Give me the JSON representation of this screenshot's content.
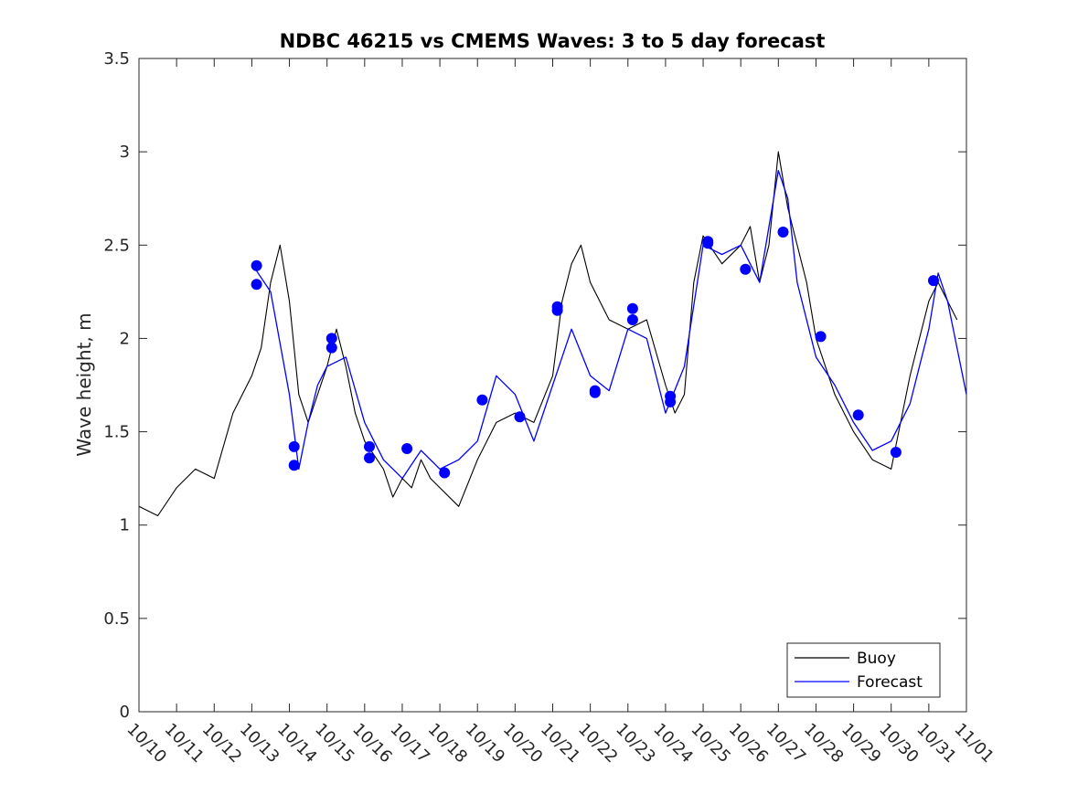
{
  "chart_data": {
    "type": "line",
    "title": "NDBC 46215 vs CMEMS Waves: 3 to 5 day forecast",
    "xlabel": "",
    "ylabel": "Wave height, m",
    "xlim": [
      "10/10",
      "11/01"
    ],
    "ylim": [
      0,
      3.5
    ],
    "x_tick_labels": [
      "10/10",
      "10/11",
      "10/12",
      "10/13",
      "10/14",
      "10/15",
      "10/16",
      "10/17",
      "10/18",
      "10/19",
      "10/20",
      "10/21",
      "10/22",
      "10/23",
      "10/24",
      "10/25",
      "10/26",
      "10/27",
      "10/28",
      "10/29",
      "10/30",
      "10/31",
      "11/01"
    ],
    "y_ticks": [
      0,
      0.5,
      1,
      1.5,
      2,
      2.5,
      3,
      3.5
    ],
    "y_tick_labels": [
      "0",
      "0.5",
      "1",
      "1.5",
      "2",
      "2.5",
      "3",
      "3.5"
    ],
    "grid": false,
    "legend": {
      "position": "bottom-right",
      "entries": [
        "Buoy",
        "Forecast"
      ]
    },
    "series": [
      {
        "name": "Buoy",
        "color": "#000000",
        "x": [
          "10/10 00:00",
          "10/10 12:00",
          "10/11 00:00",
          "10/11 12:00",
          "10/12 00:00",
          "10/12 12:00",
          "10/13 00:00",
          "10/13 06:00",
          "10/13 12:00",
          "10/13 18:00",
          "10/14 00:00",
          "10/14 06:00",
          "10/14 12:00",
          "10/14 18:00",
          "10/15 00:00",
          "10/15 06:00",
          "10/15 12:00",
          "10/15 18:00",
          "10/16 00:00",
          "10/16 12:00",
          "10/16 18:00",
          "10/17 00:00",
          "10/17 06:00",
          "10/17 12:00",
          "10/17 18:00",
          "10/18 00:00",
          "10/18 12:00",
          "10/19 00:00",
          "10/19 12:00",
          "10/20 00:00",
          "10/20 12:00",
          "10/21 00:00",
          "10/21 06:00",
          "10/21 12:00",
          "10/21 18:00",
          "10/22 00:00",
          "10/22 12:00",
          "10/23 00:00",
          "10/23 12:00",
          "10/24 00:00",
          "10/24 06:00",
          "10/24 12:00",
          "10/24 18:00",
          "10/25 00:00",
          "10/25 12:00",
          "10/26 00:00",
          "10/26 06:00",
          "10/26 12:00",
          "10/26 18:00",
          "10/27 00:00",
          "10/27 06:00",
          "10/27 12:00",
          "10/27 18:00",
          "10/28 00:00",
          "10/28 12:00",
          "10/29 00:00",
          "10/29 12:00",
          "10/30 00:00",
          "10/30 12:00",
          "10/31 00:00",
          "10/31 06:00",
          "10/31 12:00",
          "10/31 18:00"
        ],
        "values": [
          1.1,
          1.05,
          1.2,
          1.3,
          1.25,
          1.6,
          1.8,
          1.95,
          2.3,
          2.5,
          2.2,
          1.7,
          1.55,
          1.7,
          1.85,
          2.05,
          1.85,
          1.6,
          1.45,
          1.3,
          1.15,
          1.25,
          1.2,
          1.35,
          1.25,
          1.2,
          1.1,
          1.35,
          1.55,
          1.6,
          1.55,
          1.8,
          2.2,
          2.4,
          2.5,
          2.3,
          2.1,
          2.05,
          2.1,
          1.75,
          1.6,
          1.7,
          2.3,
          2.55,
          2.4,
          2.5,
          2.6,
          2.3,
          2.5,
          3.0,
          2.7,
          2.5,
          2.3,
          2.0,
          1.7,
          1.5,
          1.35,
          1.3,
          1.8,
          2.2,
          2.3,
          2.2,
          2.1
        ]
      },
      {
        "name": "Forecast",
        "color": "#0000ff",
        "x": [
          "10/13 00:00",
          "10/13 12:00",
          "10/14 00:00",
          "10/14 06:00",
          "10/14 12:00",
          "10/14 18:00",
          "10/15 00:00",
          "10/15 12:00",
          "10/16 00:00",
          "10/16 12:00",
          "10/17 00:00",
          "10/17 12:00",
          "10/18 00:00",
          "10/18 12:00",
          "10/19 00:00",
          "10/19 12:00",
          "10/20 00:00",
          "10/20 12:00",
          "10/21 00:00",
          "10/21 12:00",
          "10/22 00:00",
          "10/22 12:00",
          "10/23 00:00",
          "10/23 12:00",
          "10/24 00:00",
          "10/24 12:00",
          "10/25 00:00",
          "10/25 12:00",
          "10/26 00:00",
          "10/26 12:00",
          "10/27 00:00",
          "10/27 06:00",
          "10/27 12:00",
          "10/28 00:00",
          "10/28 12:00",
          "10/29 00:00",
          "10/29 12:00",
          "10/30 00:00",
          "10/30 12:00",
          "10/31 00:00",
          "10/31 06:00",
          "10/31 12:00",
          "11/01 00:00"
        ],
        "values": [
          2.4,
          2.25,
          1.7,
          1.3,
          1.55,
          1.75,
          1.85,
          1.9,
          1.55,
          1.35,
          1.25,
          1.4,
          1.3,
          1.35,
          1.45,
          1.8,
          1.7,
          1.45,
          1.75,
          2.05,
          1.8,
          1.72,
          2.05,
          2.0,
          1.6,
          1.85,
          2.5,
          2.45,
          2.5,
          2.3,
          2.9,
          2.75,
          2.3,
          1.9,
          1.75,
          1.55,
          1.4,
          1.45,
          1.65,
          2.05,
          2.35,
          2.2,
          1.7
        ]
      }
    ],
    "markers": {
      "color": "#0000ff",
      "x": [
        "10/13 03:00",
        "10/13 03:00",
        "10/14 03:00",
        "10/14 03:00",
        "10/15 03:00",
        "10/15 03:00",
        "10/16 03:00",
        "10/16 03:00",
        "10/17 03:00",
        "10/18 03:00",
        "10/19 03:00",
        "10/20 03:00",
        "10/21 03:00",
        "10/21 03:00",
        "10/22 03:00",
        "10/22 03:00",
        "10/23 03:00",
        "10/23 03:00",
        "10/24 03:00",
        "10/24 03:00",
        "10/25 03:00",
        "10/25 03:00",
        "10/26 03:00",
        "10/27 03:00",
        "10/28 03:00",
        "10/29 03:00",
        "10/30 03:00",
        "10/31 03:00"
      ],
      "values": [
        2.39,
        2.29,
        1.42,
        1.32,
        2.0,
        1.95,
        1.42,
        1.36,
        1.41,
        1.28,
        1.67,
        1.58,
        2.17,
        2.15,
        1.72,
        1.71,
        2.16,
        2.1,
        1.69,
        1.66,
        2.52,
        2.51,
        2.37,
        2.57,
        2.01,
        1.59,
        1.39,
        2.31
      ]
    }
  }
}
